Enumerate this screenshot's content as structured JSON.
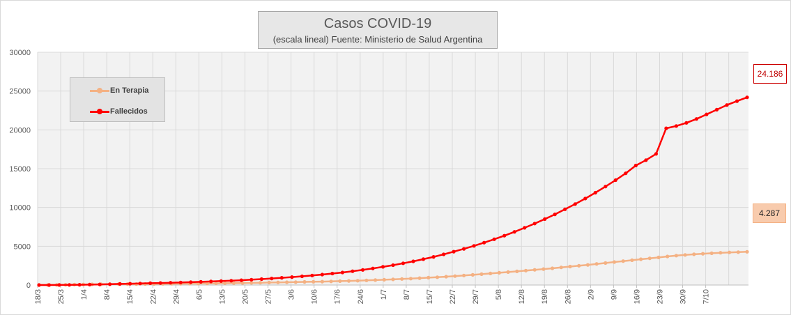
{
  "chart_data": {
    "type": "line",
    "title": "Casos COVID-19",
    "subtitle": "(escala lineal) Fuente: Ministerio de Salud Argentina",
    "xlabel": "",
    "ylabel": "",
    "ylim": [
      0,
      30000
    ],
    "y_ticks": [
      "0",
      "5000",
      "10000",
      "15000",
      "20000",
      "25000",
      "30000"
    ],
    "x_ticks": [
      "18/3",
      "25/3",
      "1/4",
      "8/4",
      "15/4",
      "22/4",
      "29/4",
      "6/5",
      "13/5",
      "20/5",
      "27/5",
      "3/6",
      "10/6",
      "17/6",
      "24/6",
      "1/7",
      "8/7",
      "15/7",
      "22/7",
      "29/7",
      "5/8",
      "12/8",
      "19/8",
      "26/8",
      "2/9",
      "9/9",
      "16/9",
      "23/9",
      "30/9",
      "7/10"
    ],
    "grid": true,
    "legend_position": "top-left",
    "series": [
      {
        "name": "En Terapia",
        "color": "#f4b183",
        "end_label": "4.287",
        "values": [
          5,
          10,
          20,
          35,
          50,
          70,
          90,
          100,
          110,
          120,
          125,
          130,
          135,
          140,
          150,
          160,
          170,
          180,
          190,
          200,
          215,
          230,
          245,
          260,
          280,
          300,
          320,
          340,
          360,
          380,
          400,
          420,
          440,
          470,
          500,
          530,
          560,
          600,
          640,
          680,
          730,
          780,
          830,
          890,
          950,
          1010,
          1080,
          1150,
          1230,
          1310,
          1400,
          1490,
          1580,
          1670,
          1760,
          1860,
          1960,
          2060,
          2160,
          2270,
          2380,
          2490,
          2600,
          2720,
          2840,
          2960,
          3080,
          3200,
          3320,
          3440,
          3560,
          3680,
          3790,
          3880,
          3960,
          4030,
          4100,
          4160,
          4200,
          4240,
          4287
        ]
      },
      {
        "name": "Fallecidos",
        "color": "#ff0000",
        "end_label": "24.186",
        "values": [
          0,
          3,
          8,
          20,
          35,
          55,
          80,
          110,
          140,
          170,
          200,
          230,
          260,
          300,
          330,
          370,
          410,
          460,
          510,
          560,
          620,
          690,
          760,
          840,
          930,
          1020,
          1120,
          1230,
          1350,
          1480,
          1620,
          1780,
          1950,
          2140,
          2340,
          2560,
          2800,
          3050,
          3330,
          3630,
          3950,
          4300,
          4660,
          5050,
          5460,
          5900,
          6360,
          6850,
          7370,
          7920,
          8500,
          9110,
          9760,
          10440,
          11150,
          11900,
          12690,
          13520,
          14400,
          15400,
          16100,
          16900,
          20200,
          20500,
          20900,
          21400,
          22000,
          22600,
          23200,
          23700,
          24186
        ]
      }
    ]
  }
}
